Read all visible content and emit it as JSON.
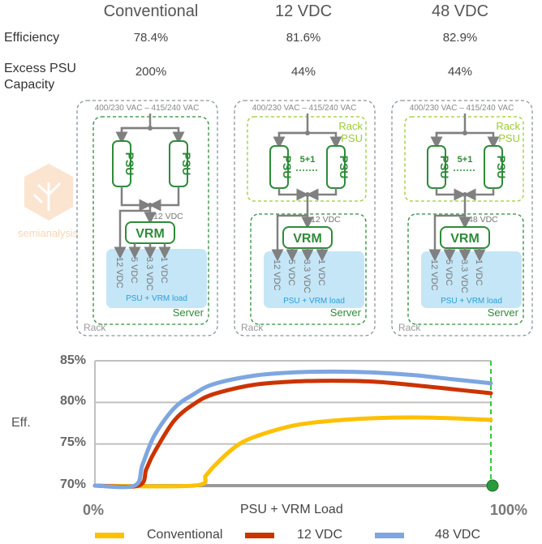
{
  "columns": [
    "Conventional",
    "12 VDC",
    "48 VDC"
  ],
  "rows": [
    {
      "label": "Efficiency",
      "values": [
        "78.4%",
        "81.6%",
        "82.9%"
      ]
    },
    {
      "label": "Excess PSU Capacity",
      "values": [
        "200%",
        "44%",
        "44%"
      ]
    }
  ],
  "logo_text": "semianalysis",
  "diagrams": [
    {
      "ac": "400/230 VAC – 415/240 VAC",
      "psu": "PSU",
      "redundancy": "",
      "rack_psu": "",
      "bus": "12 VDC",
      "vrm": "VRM",
      "rails": [
        "12 VDC",
        "5 VDC",
        "3.3 VDC",
        "1 VDC"
      ],
      "load": "PSU + VRM load",
      "server": "Server",
      "rack": "Rack"
    },
    {
      "ac": "400/230 VAC – 415/240 VAC",
      "psu": "PSU",
      "redundancy": "5+1",
      "rack_psu": "Rack PSU",
      "bus": "12 VDC",
      "vrm": "VRM",
      "rails": [
        "12 VDC",
        "5 VDC",
        "3.3 VDC",
        "1 VDC"
      ],
      "load": "PSU + VRM load",
      "server": "Server",
      "rack": "Rack"
    },
    {
      "ac": "400/230 VAC – 415/240 VAC",
      "psu": "PSU",
      "redundancy": "5+1",
      "rack_psu": "Rack PSU",
      "bus": "48 VDC",
      "vrm": "VRM",
      "rails": [
        "12 VDC",
        "5 VDC",
        "3.3 VDC",
        "1 VDC"
      ],
      "load": "PSU + VRM load",
      "server": "Server",
      "rack": "Rack"
    }
  ],
  "colors": {
    "conventional": "#ffc000",
    "vdc12": "#cc3300",
    "vdc48": "#7ea6e0",
    "server_green": "#2e8b3a",
    "rack_psu_green": "#99cc33",
    "load_blue": "#c5e6f7",
    "marker_green": "#33cc33"
  },
  "chart_data": {
    "type": "line",
    "ylabel": "Eff.",
    "xlabel": "PSU + VRM Load",
    "x_ticks": [
      "0%",
      "100%"
    ],
    "y_ticks": [
      "85%",
      "80%",
      "75%",
      "70%"
    ],
    "ylim": [
      70,
      85
    ],
    "xlim": [
      0,
      100
    ],
    "grid": true,
    "legend_position": "bottom",
    "series": [
      {
        "name": "Conventional",
        "color": "#ffc000",
        "points": [
          [
            0,
            70
          ],
          [
            25,
            70
          ],
          [
            28,
            71.2
          ],
          [
            30,
            72.3
          ],
          [
            35,
            74.5
          ],
          [
            40,
            75.8
          ],
          [
            50,
            77.2
          ],
          [
            60,
            77.8
          ],
          [
            70,
            78.1
          ],
          [
            80,
            78.2
          ],
          [
            90,
            78.1
          ],
          [
            100,
            77.9
          ]
        ]
      },
      {
        "name": "12 VDC",
        "color": "#cc3300",
        "points": [
          [
            0,
            70
          ],
          [
            11,
            70
          ],
          [
            13,
            72
          ],
          [
            15,
            74
          ],
          [
            20,
            77.8
          ],
          [
            25,
            79.8
          ],
          [
            30,
            81
          ],
          [
            40,
            82.1
          ],
          [
            50,
            82.5
          ],
          [
            60,
            82.6
          ],
          [
            70,
            82.5
          ],
          [
            80,
            82.1
          ],
          [
            90,
            81.6
          ],
          [
            100,
            81.1
          ]
        ]
      },
      {
        "name": "48 VDC",
        "color": "#7ea6e0",
        "points": [
          [
            0,
            70
          ],
          [
            10,
            70
          ],
          [
            12,
            72.5
          ],
          [
            15,
            76
          ],
          [
            20,
            79.3
          ],
          [
            25,
            81
          ],
          [
            30,
            82.2
          ],
          [
            40,
            83.2
          ],
          [
            50,
            83.6
          ],
          [
            60,
            83.7
          ],
          [
            70,
            83.6
          ],
          [
            80,
            83.3
          ],
          [
            90,
            82.8
          ],
          [
            100,
            82.3
          ]
        ]
      }
    ]
  }
}
